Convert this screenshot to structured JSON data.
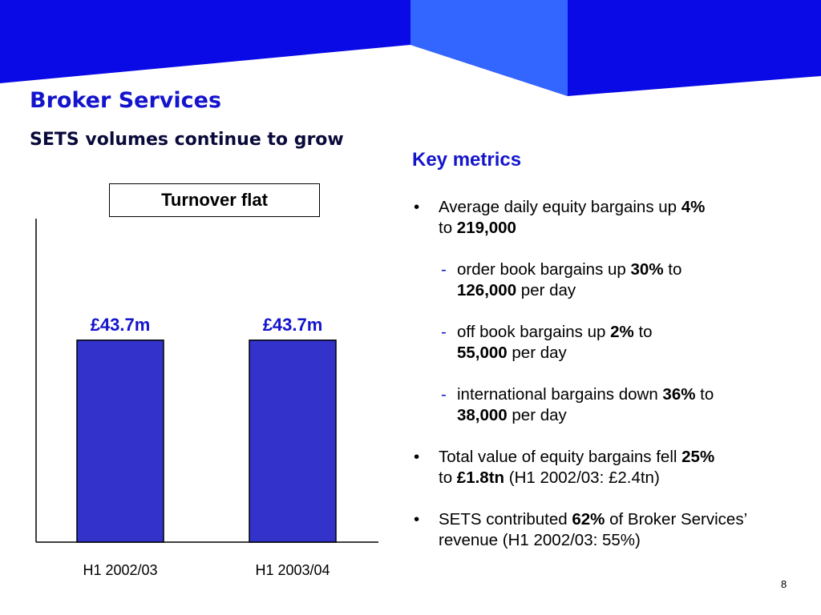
{
  "colors": {
    "banner_dark": "#0a0ae6",
    "banner_light": "#3366ff",
    "bar": "#3333cc",
    "title": "#1414cc"
  },
  "header": {
    "title": "Broker Services",
    "subtitle": "SETS volumes continue to grow"
  },
  "chart_data": {
    "type": "bar",
    "categories": [
      "H1 2002/03",
      "H1 2003/04"
    ],
    "values": [
      43.7,
      43.7
    ],
    "data_labels": [
      "£43.7m",
      "£43.7m"
    ],
    "annotation": "Turnover flat",
    "ylim": [
      0,
      70
    ],
    "grid": false
  },
  "metrics": {
    "heading": "Key metrics",
    "bullet_glyph": "•",
    "dash_glyph": "-",
    "b1": {
      "t1": "Average daily equity bargains up ",
      "v1": "4%",
      "t2": " to ",
      "v2": "219,000"
    },
    "s1": {
      "t1": "order book bargains up ",
      "v1": "30%",
      "t2": " to ",
      "v2": "126,000",
      "t3": " per day"
    },
    "s2": {
      "t1": "off book bargains up ",
      "v1": "2%",
      "t2": " to ",
      "v2": "55,000",
      "t3": " per day"
    },
    "s3": {
      "t1": "international bargains down ",
      "v1": "36%",
      "t2": " to ",
      "v2": "38,000",
      "t3": " per day"
    },
    "b2": {
      "t1": "Total value of equity bargains fell ",
      "v1": "25%",
      "t2": " to ",
      "v2": "£1.8tn",
      "t3": " (H1 2002/03: £2.4tn)"
    },
    "b3": {
      "t1": "SETS contributed ",
      "v1": "62%",
      "t2": " of Broker Services’ revenue (H1 2002/03: 55%)"
    }
  },
  "footer": {
    "page_number": "8"
  }
}
